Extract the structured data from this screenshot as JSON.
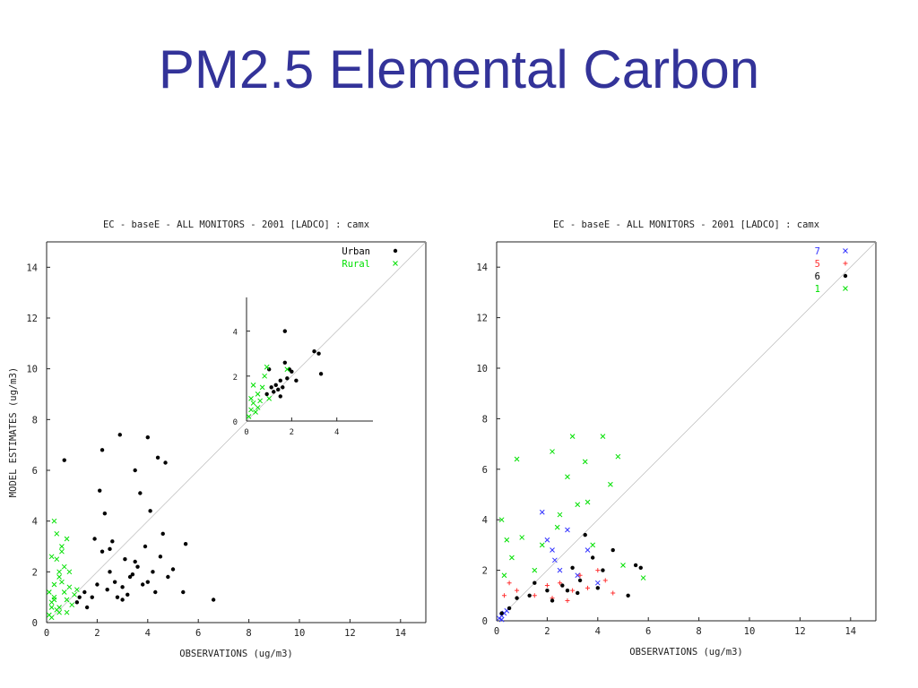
{
  "title": "PM2.5 Elemental Carbon",
  "chart_data": [
    {
      "type": "scatter",
      "title": "EC - baseE - ALL MONITORS - 2001 [LADCO] : camx",
      "xlabel": "OBSERVATIONS (ug/m3)",
      "ylabel": "MODEL ESTIMATES (ug/m3)",
      "xlim": [
        0,
        15
      ],
      "ylim": [
        0,
        15
      ],
      "xticks": [
        0,
        2,
        4,
        6,
        8,
        10,
        12,
        14
      ],
      "yticks": [
        0,
        2,
        4,
        6,
        8,
        10,
        12,
        14
      ],
      "legend": "upper right",
      "series": [
        {
          "name": "Urban",
          "color": "#000000",
          "marker": "dot",
          "x": [
            0.7,
            1.2,
            1.5,
            1.8,
            2.0,
            2.2,
            2.4,
            2.5,
            2.7,
            2.9,
            3.0,
            3.1,
            3.3,
            3.5,
            3.6,
            3.8,
            4.0,
            4.2,
            4.4,
            4.6,
            4.8,
            5.0,
            5.5,
            6.6,
            2.1,
            2.6,
            3.2,
            3.4,
            4.1,
            4.3,
            1.6,
            2.3,
            2.8,
            3.7,
            4.5,
            1.9,
            2.5,
            3.0,
            3.5,
            4.0,
            5.4,
            2.2,
            3.9,
            4.7,
            1.3
          ],
          "values": [
            6.4,
            0.8,
            1.2,
            1.0,
            1.5,
            6.8,
            1.3,
            2.0,
            1.6,
            7.4,
            1.4,
            2.5,
            1.8,
            6.0,
            2.2,
            1.5,
            7.3,
            2.0,
            6.5,
            3.5,
            1.8,
            2.1,
            3.1,
            0.9,
            5.2,
            3.2,
            1.1,
            1.9,
            4.4,
            1.2,
            0.6,
            4.3,
            1.0,
            5.1,
            2.6,
            3.3,
            2.9,
            0.9,
            2.4,
            1.6,
            1.2,
            2.8,
            3.0,
            6.3,
            1.0
          ]
        },
        {
          "name": "Rural",
          "color": "#00e000",
          "marker": "x",
          "x": [
            0.1,
            0.2,
            0.3,
            0.3,
            0.4,
            0.5,
            0.5,
            0.6,
            0.7,
            0.8,
            0.9,
            1.0,
            0.2,
            0.4,
            0.6,
            0.3,
            0.5,
            0.7,
            0.9,
            1.1,
            0.1,
            0.2,
            0.4,
            0.6,
            0.8,
            1.2,
            0.3,
            0.5,
            0.2,
            0.8
          ],
          "values": [
            0.3,
            0.8,
            1.5,
            4.0,
            2.5,
            0.6,
            1.8,
            3.0,
            1.2,
            0.9,
            2.0,
            0.7,
            0.2,
            3.5,
            2.8,
            1.0,
            0.4,
            2.2,
            1.4,
            1.1,
            1.2,
            2.6,
            0.5,
            1.6,
            3.3,
            1.3,
            0.9,
            2.0,
            0.6,
            0.4
          ]
        }
      ]
    },
    {
      "type": "scatter",
      "xlim": [
        0,
        5.6
      ],
      "ylim": [
        0,
        5.5
      ],
      "xticks": [
        0,
        2,
        4
      ],
      "yticks": [
        0,
        2,
        4
      ],
      "series": [
        {
          "color": "#000000",
          "marker": "dot",
          "x": [
            0.9,
            1.1,
            1.2,
            1.3,
            1.4,
            1.5,
            1.6,
            1.7,
            1.8,
            2.0,
            2.2,
            3.0,
            3.2,
            3.3,
            1.7,
            1.9,
            1.0,
            1.5
          ],
          "values": [
            1.2,
            1.5,
            1.3,
            1.6,
            1.4,
            1.8,
            1.5,
            2.6,
            1.9,
            2.2,
            1.8,
            3.1,
            3.0,
            2.1,
            4.0,
            2.3,
            2.3,
            1.1
          ]
        },
        {
          "color": "#00e000",
          "marker": "x",
          "x": [
            0.1,
            0.2,
            0.3,
            0.4,
            0.5,
            0.6,
            0.7,
            0.8,
            0.9,
            0.3,
            0.5,
            0.2,
            1.8,
            1.0
          ],
          "values": [
            0.2,
            0.5,
            0.8,
            0.4,
            1.2,
            0.9,
            1.5,
            2.0,
            2.4,
            1.6,
            0.6,
            1.0,
            2.3,
            1.0
          ]
        }
      ]
    },
    {
      "type": "scatter",
      "title": "EC - baseE - ALL MONITORS - 2001 [LADCO] : camx",
      "xlabel": "OBSERVATIONS (ug/m3)",
      "xlim": [
        0,
        15
      ],
      "ylim": [
        0,
        15
      ],
      "xticks": [
        0,
        2,
        4,
        6,
        8,
        10,
        12,
        14
      ],
      "yticks": [
        0,
        2,
        4,
        6,
        8,
        10,
        12,
        14
      ],
      "legend": "upper right",
      "series": [
        {
          "name": "7",
          "color": "#3333ff",
          "marker": "x",
          "x": [
            0.1,
            0.2,
            0.3,
            1.8,
            2.0,
            2.3,
            2.5,
            2.8,
            3.2,
            3.6,
            4.0,
            0.2,
            0.4,
            2.2
          ],
          "values": [
            0.1,
            0.2,
            0.3,
            4.3,
            3.2,
            2.4,
            2.0,
            3.6,
            1.8,
            2.8,
            1.5,
            0.05,
            0.4,
            2.8
          ]
        },
        {
          "name": "5",
          "color": "#ff3333",
          "marker": "plus",
          "x": [
            0.3,
            0.5,
            0.8,
            1.5,
            2.2,
            2.5,
            2.8,
            3.0,
            3.3,
            3.6,
            4.0,
            4.3,
            4.6,
            2.0
          ],
          "values": [
            1.0,
            1.5,
            1.2,
            1.0,
            0.9,
            1.5,
            0.8,
            1.2,
            1.8,
            1.3,
            2.0,
            1.6,
            1.1,
            1.4
          ]
        },
        {
          "name": "6",
          "color": "#000000",
          "marker": "dot",
          "x": [
            0.5,
            0.8,
            1.3,
            1.5,
            2.0,
            2.2,
            2.6,
            3.0,
            3.2,
            3.5,
            3.8,
            4.0,
            4.2,
            4.6,
            5.2,
            5.5,
            5.7,
            0.2,
            2.8,
            3.3
          ],
          "values": [
            0.5,
            0.9,
            1.0,
            1.5,
            1.2,
            0.8,
            1.4,
            2.1,
            1.1,
            3.4,
            2.5,
            1.3,
            2.0,
            2.8,
            1.0,
            2.2,
            2.1,
            0.3,
            1.2,
            1.6
          ]
        },
        {
          "name": "1",
          "color": "#00e000",
          "marker": "x",
          "x": [
            0.2,
            0.4,
            0.6,
            0.8,
            1.0,
            1.5,
            1.8,
            2.2,
            2.5,
            2.8,
            3.0,
            3.2,
            3.5,
            3.8,
            4.2,
            4.5,
            4.8,
            5.0,
            5.8,
            0.3,
            2.4,
            3.6
          ],
          "values": [
            4.0,
            3.2,
            2.5,
            6.4,
            3.3,
            2.0,
            3.0,
            6.7,
            4.2,
            5.7,
            7.3,
            4.6,
            6.3,
            3.0,
            7.3,
            5.4,
            6.5,
            2.2,
            1.7,
            1.8,
            3.7,
            4.7
          ]
        }
      ]
    }
  ]
}
